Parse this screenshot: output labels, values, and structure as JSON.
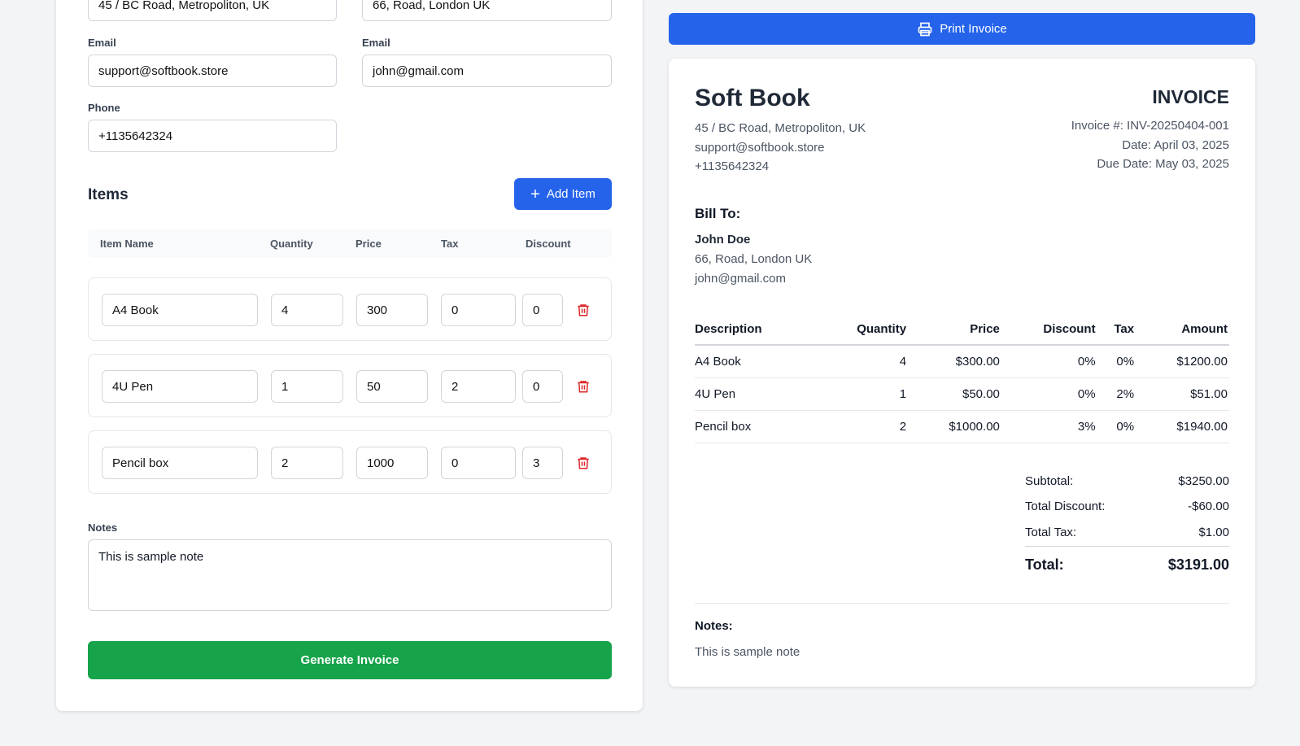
{
  "form": {
    "company_address": "45 / BC Road, Metropoliton, UK",
    "client_address": "66, Road, London UK",
    "company_email_label": "Email",
    "company_email": "support@softbook.store",
    "client_email_label": "Email",
    "client_email": "john@gmail.com",
    "phone_label": "Phone",
    "phone": "+1135642324",
    "items_title": "Items",
    "add_item": "Add Item",
    "columns": [
      "Item Name",
      "Quantity",
      "Price",
      "Tax",
      "Discount"
    ],
    "items": [
      {
        "name": "A4 Book",
        "qty": "4",
        "price": "300",
        "tax": "0",
        "discount": "0"
      },
      {
        "name": "4U Pen",
        "qty": "1",
        "price": "50",
        "tax": "2",
        "discount": "0"
      },
      {
        "name": "Pencil box",
        "qty": "2",
        "price": "1000",
        "tax": "0",
        "discount": "3"
      }
    ],
    "notes_label": "Notes",
    "notes": "This is sample note",
    "generate": "Generate Invoice"
  },
  "print_label": "Print Invoice",
  "invoice": {
    "company": "Soft Book",
    "address": "45 / BC Road, Metropoliton, UK",
    "email": "support@softbook.store",
    "phone": "+1135642324",
    "title": "INVOICE",
    "number": "Invoice #: INV-20250404-001",
    "date": "Date: April 03, 2025",
    "due": "Due Date: May 03, 2025",
    "bill_to_label": "Bill To:",
    "client_name": "John Doe",
    "client_address": "66, Road, London UK",
    "client_email": "john@gmail.com",
    "columns": [
      "Description",
      "Quantity",
      "Price",
      "Discount",
      "Tax",
      "Amount"
    ],
    "rows": [
      [
        "A4 Book",
        "4",
        "$300.00",
        "0%",
        "0%",
        "$1200.00"
      ],
      [
        "4U Pen",
        "1",
        "$50.00",
        "0%",
        "2%",
        "$51.00"
      ],
      [
        "Pencil box",
        "2",
        "$1000.00",
        "3%",
        "0%",
        "$1940.00"
      ]
    ],
    "subtotal_label": "Subtotal:",
    "subtotal": "$3250.00",
    "discount_label": "Total Discount:",
    "discount": "-$60.00",
    "tax_label": "Total Tax:",
    "tax": "$1.00",
    "total_label": "Total:",
    "total": "$3191.00",
    "notes_label": "Notes:",
    "notes": "This is sample note"
  },
  "colors": {
    "primary": "#2563eb",
    "success": "#16a34a",
    "danger": "#dc2626"
  }
}
